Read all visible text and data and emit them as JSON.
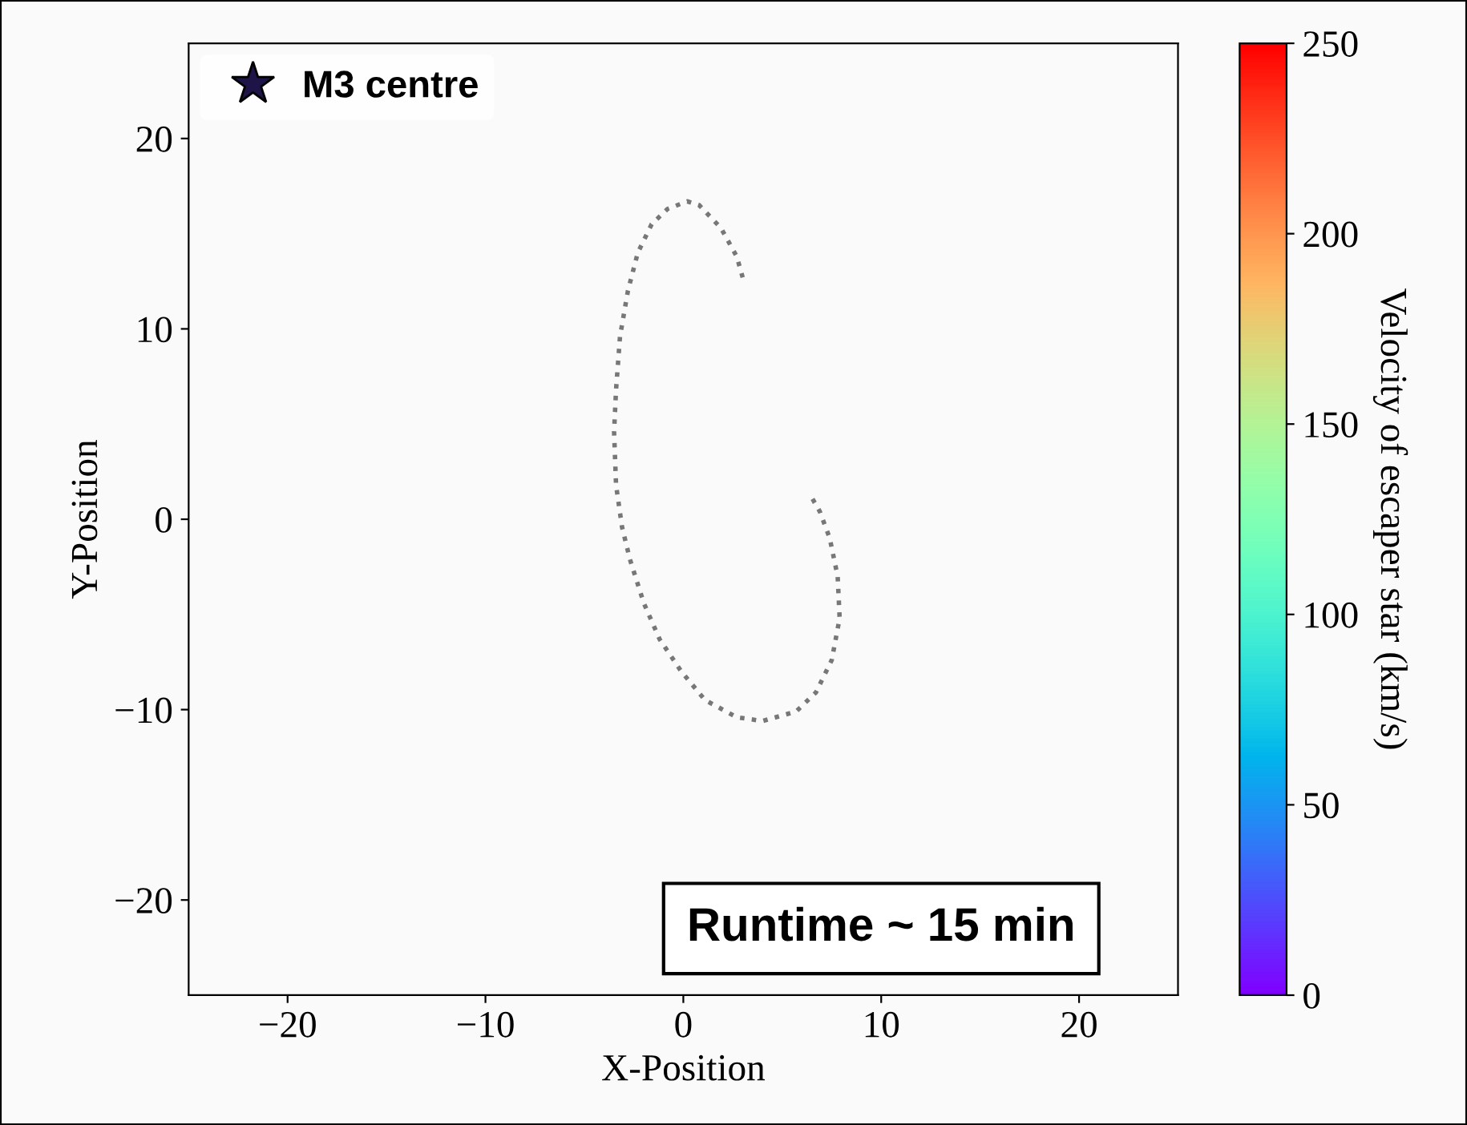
{
  "chart_data": {
    "type": "line",
    "xlabel": "X-Position",
    "ylabel": "Y-Position",
    "clabel": "Velocity of escaper star (km/s)",
    "series": [
      {
        "x": [
          3.0,
          2.7,
          1.9,
          0.8,
          0.2,
          -0.8,
          -1.6,
          -2.3,
          -2.8,
          -3.2,
          -3.4,
          -3.5,
          -3.4,
          -3.1,
          -2.7,
          -2.0,
          -1.2,
          -0.1,
          1.1,
          2.7,
          4.0,
          5.7,
          6.7,
          7.5,
          7.9,
          7.8,
          7.4,
          6.9,
          6.4
        ],
        "values": [
          12.7,
          13.8,
          15.3,
          16.5,
          16.7,
          16.3,
          15.5,
          14.0,
          12.0,
          9.6,
          6.8,
          4.6,
          1.8,
          -0.4,
          -2.1,
          -4.4,
          -6.3,
          -8.0,
          -9.5,
          -10.4,
          -10.6,
          -10.1,
          -9.1,
          -7.4,
          -5.2,
          -3.0,
          -1.0,
          0.4,
          1.3
        ],
        "color": "#777777",
        "line_style": "dotted",
        "marker": "none"
      },
      {
        "name": "M3 centre",
        "type": "scatter",
        "color": "#1f1447",
        "marker": "star"
      }
    ],
    "xlim": [
      -25,
      25
    ],
    "ylim": [
      -25,
      25
    ],
    "xticks": [
      -20,
      -10,
      0,
      10,
      20
    ],
    "yticks": [
      -20,
      -10,
      0,
      10,
      20
    ],
    "clim": [
      0,
      250
    ],
    "cticks": [
      0,
      50,
      100,
      150,
      200,
      250
    ],
    "annotations": [
      "Runtime ~ 15 min"
    ],
    "grid": false,
    "legend": "top left"
  }
}
